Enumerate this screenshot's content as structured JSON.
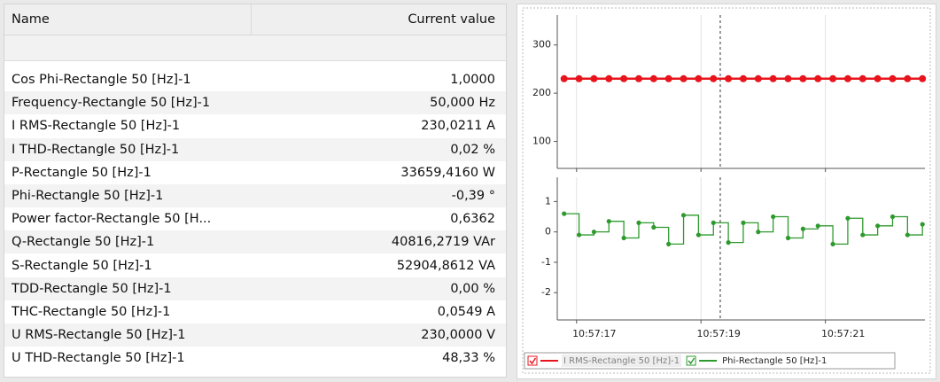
{
  "table": {
    "columns": [
      "Name",
      "Current value"
    ],
    "rows": [
      [
        "Cos Phi-Rectangle 50 [Hz]-1",
        "1,0000"
      ],
      [
        "Frequency-Rectangle 50 [Hz]-1",
        "50,000 Hz"
      ],
      [
        "I RMS-Rectangle 50 [Hz]-1",
        "230,0211 A"
      ],
      [
        "I THD-Rectangle 50 [Hz]-1",
        "0,02 %"
      ],
      [
        "P-Rectangle 50 [Hz]-1",
        "33659,4160 W"
      ],
      [
        "Phi-Rectangle 50 [Hz]-1",
        "-0,39 °"
      ],
      [
        "Power factor-Rectangle 50 [H...",
        "0,6362"
      ],
      [
        "Q-Rectangle 50 [Hz]-1",
        "40816,2719 VAr"
      ],
      [
        "S-Rectangle 50 [Hz]-1",
        "52904,8612 VA"
      ],
      [
        "TDD-Rectangle 50 [Hz]-1",
        "0,00 %"
      ],
      [
        "THC-Rectangle 50 [Hz]-1",
        "0,0549 A"
      ],
      [
        "U RMS-Rectangle 50 [Hz]-1",
        "230,0000 V"
      ],
      [
        "U THD-Rectangle 50 [Hz]-1",
        "48,33 %"
      ]
    ]
  },
  "chart_data": [
    {
      "type": "line",
      "x": [
        16.8,
        17.04,
        17.28,
        17.52,
        17.76,
        18.0,
        18.24,
        18.48,
        18.72,
        18.96,
        19.2,
        19.44,
        19.68,
        19.92,
        20.16,
        20.4,
        20.64,
        20.88,
        21.12,
        21.36,
        21.6,
        21.84,
        22.08,
        22.32,
        22.56
      ],
      "xlim": [
        16.69,
        22.6
      ],
      "xticks": [
        17,
        19,
        21
      ],
      "cursor_x": 19.31,
      "ylim": [
        44,
        362
      ],
      "yticks": [
        100,
        200,
        300
      ],
      "series": [
        {
          "name": "I RMS-Rectangle 50 [Hz]-1",
          "color": "#e8141c",
          "values": [
            230,
            230,
            230,
            230,
            230,
            230,
            230,
            230,
            230,
            230,
            230,
            230,
            230,
            230,
            230,
            230,
            230,
            230,
            230,
            230,
            230,
            230,
            230,
            230,
            230
          ]
        }
      ]
    },
    {
      "type": "step",
      "x": [
        16.8,
        17.04,
        17.28,
        17.52,
        17.76,
        18.0,
        18.24,
        18.48,
        18.72,
        18.96,
        19.2,
        19.44,
        19.68,
        19.92,
        20.16,
        20.4,
        20.64,
        20.88,
        21.12,
        21.36,
        21.6,
        21.84,
        22.08,
        22.32,
        22.56
      ],
      "xlim": [
        16.69,
        22.6
      ],
      "xticks": [
        {
          "value": 17,
          "label": "10:57:17"
        },
        {
          "value": 19,
          "label": "10:57:19"
        },
        {
          "value": 21,
          "label": "10:57:21"
        }
      ],
      "cursor_x": 19.31,
      "ylim": [
        -2.9,
        1.8
      ],
      "yticks": [
        -2,
        -1,
        0,
        1
      ],
      "series": [
        {
          "name": "Phi-Rectangle 50 [Hz]-1",
          "color": "#2e9a2e",
          "values": [
            0.6,
            -0.1,
            0.0,
            0.35,
            -0.2,
            0.3,
            0.15,
            -0.4,
            0.55,
            -0.1,
            0.3,
            -0.35,
            0.3,
            0.0,
            0.5,
            -0.2,
            0.1,
            0.2,
            -0.4,
            0.45,
            -0.1,
            0.2,
            0.5,
            -0.1,
            0.25
          ]
        }
      ]
    }
  ]
}
